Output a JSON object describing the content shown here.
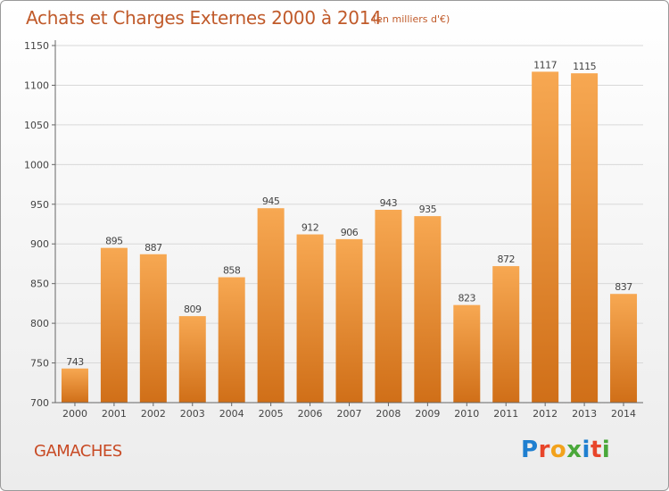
{
  "header": {
    "title": "Achats et Charges Externes 2000 à 2014",
    "subtitle": "(en milliers d'€)"
  },
  "footer": {
    "town": "GAMACHES",
    "logo_text": "Proxiti",
    "logo_colors": [
      "#1f7fd0",
      "#e8452a",
      "#f2a21c",
      "#4aa83a",
      "#1f7fd0",
      "#e8452a",
      "#4aa83a"
    ]
  },
  "colors": {
    "bar_light": "#f7a852",
    "bar_dark": "#d06f18",
    "title": "#c05a2a",
    "axis": "#666666",
    "grid": "#d8d8d8"
  },
  "chart_data": {
    "type": "bar",
    "categories": [
      "2000",
      "2001",
      "2002",
      "2003",
      "2004",
      "2005",
      "2006",
      "2007",
      "2008",
      "2009",
      "2010",
      "2011",
      "2012",
      "2013",
      "2014"
    ],
    "values": [
      743,
      895,
      887,
      809,
      858,
      945,
      912,
      906,
      943,
      935,
      823,
      872,
      1117,
      1115,
      837
    ],
    "yticks": [
      700,
      750,
      800,
      850,
      900,
      950,
      1000,
      1050,
      1100,
      1150
    ],
    "ylim": [
      700,
      1150
    ],
    "grid": true,
    "title": "Achats et Charges Externes 2000 à 2014",
    "xlabel": "",
    "ylabel": ""
  }
}
